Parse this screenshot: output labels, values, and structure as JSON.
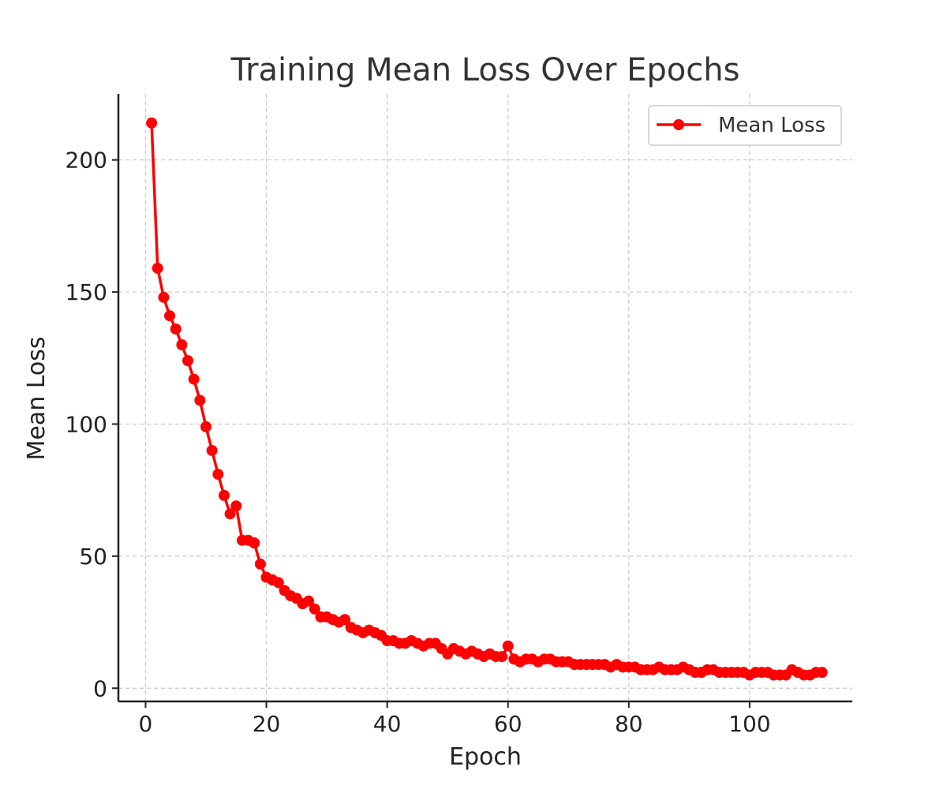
{
  "chart_data": {
    "type": "line",
    "title": "Training Mean Loss Over Epochs",
    "xlabel": "Epoch",
    "ylabel": "Mean Loss",
    "xlim": [
      -4.5,
      117
    ],
    "ylim": [
      -5,
      225
    ],
    "xticks": [
      0,
      20,
      40,
      60,
      80,
      100
    ],
    "yticks": [
      0,
      50,
      100,
      150,
      200
    ],
    "grid": true,
    "legend_position": "top-right",
    "series": [
      {
        "name": "Mean Loss",
        "color": "#ff0000",
        "marker": "circle",
        "x": [
          1,
          2,
          3,
          4,
          5,
          6,
          7,
          8,
          9,
          10,
          11,
          12,
          13,
          14,
          15,
          16,
          17,
          18,
          19,
          20,
          21,
          22,
          23,
          24,
          25,
          26,
          27,
          28,
          29,
          30,
          31,
          32,
          33,
          34,
          35,
          36,
          37,
          38,
          39,
          40,
          41,
          42,
          43,
          44,
          45,
          46,
          47,
          48,
          49,
          50,
          51,
          52,
          53,
          54,
          55,
          56,
          57,
          58,
          59,
          60,
          61,
          62,
          63,
          64,
          65,
          66,
          67,
          68,
          69,
          70,
          71,
          72,
          73,
          74,
          75,
          76,
          77,
          78,
          79,
          80,
          81,
          82,
          83,
          84,
          85,
          86,
          87,
          88,
          89,
          90,
          91,
          92,
          93,
          94,
          95,
          96,
          97,
          98,
          99,
          100,
          101,
          102,
          103,
          104,
          105,
          106,
          107,
          108,
          109,
          110,
          111,
          112
        ],
        "y": [
          214,
          159,
          148,
          141,
          136,
          130,
          124,
          117,
          109,
          99,
          90,
          81,
          73,
          66,
          69,
          56,
          56,
          55,
          47,
          42,
          41,
          40,
          37,
          35,
          34,
          32,
          33,
          30,
          27,
          27,
          26,
          25,
          26,
          23,
          22,
          21,
          22,
          21,
          20,
          18,
          18,
          17,
          17,
          18,
          17,
          16,
          17,
          17,
          15,
          13,
          15,
          14,
          13,
          14,
          13,
          12,
          13,
          12,
          12,
          16,
          11,
          10,
          11,
          11,
          10,
          11,
          11,
          10,
          10,
          10,
          9,
          9,
          9,
          9,
          9,
          9,
          8,
          9,
          8,
          8,
          8,
          7,
          7,
          7,
          8,
          7,
          7,
          7,
          8,
          7,
          6,
          6,
          7,
          7,
          6,
          6,
          6,
          6,
          6,
          5,
          6,
          6,
          6,
          5,
          5,
          5,
          7,
          6,
          5,
          5,
          6,
          6
        ]
      }
    ]
  }
}
